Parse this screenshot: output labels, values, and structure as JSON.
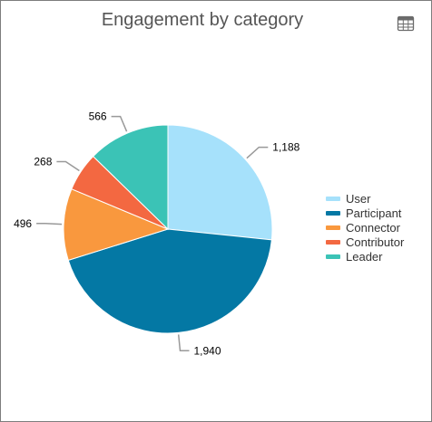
{
  "header": {
    "title": "Engagement by category",
    "table_icon": "table-grid-icon"
  },
  "chart_data": {
    "type": "pie",
    "title": "Engagement by category",
    "categories": [
      "User",
      "Participant",
      "Connector",
      "Contributor",
      "Leader"
    ],
    "values": [
      1188,
      1940,
      496,
      268,
      566
    ],
    "value_labels": [
      "1,188",
      "1,940",
      "496",
      "268",
      "566"
    ],
    "colors": [
      "#a6e1fb",
      "#0478a4",
      "#f9983e",
      "#f36841",
      "#3bc3b6"
    ],
    "legend_position": "right"
  }
}
